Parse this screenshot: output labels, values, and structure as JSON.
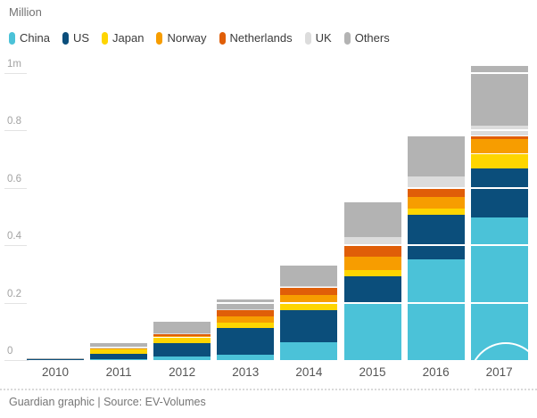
{
  "title": "Million",
  "legend": {
    "items": [
      {
        "label": "China",
        "color": "#4bc2d8"
      },
      {
        "label": "US",
        "color": "#0b4e7b"
      },
      {
        "label": "Japan",
        "color": "#fed500"
      },
      {
        "label": "Norway",
        "color": "#f79d00"
      },
      {
        "label": "Netherlands",
        "color": "#e05e08"
      },
      {
        "label": "UK",
        "color": "#dcdcdc"
      },
      {
        "label": "Others",
        "color": "#b3b3b3"
      }
    ]
  },
  "chart_data": {
    "type": "bar",
    "stacked": true,
    "title": "Million",
    "ylabel": "Million",
    "xlabel": "",
    "categories": [
      "2010",
      "2011",
      "2012",
      "2013",
      "2014",
      "2015",
      "2016",
      "2017"
    ],
    "series": [
      {
        "name": "China",
        "color": "#4bc2d8",
        "values": [
          0.0,
          0.004,
          0.013,
          0.019,
          0.063,
          0.201,
          0.352,
          0.498
        ]
      },
      {
        "name": "US",
        "color": "#0b4e7b",
        "values": [
          0.002,
          0.018,
          0.047,
          0.092,
          0.112,
          0.09,
          0.155,
          0.17
        ]
      },
      {
        "name": "Japan",
        "color": "#fed500",
        "values": [
          0.003,
          0.016,
          0.019,
          0.019,
          0.028,
          0.023,
          0.022,
          0.051
        ]
      },
      {
        "name": "Norway",
        "color": "#f79d00",
        "values": [
          0.001,
          0.005,
          0.006,
          0.022,
          0.025,
          0.046,
          0.04,
          0.052
        ]
      },
      {
        "name": "Netherlands",
        "color": "#e05e08",
        "values": [
          0.0,
          0.001,
          0.006,
          0.022,
          0.025,
          0.04,
          0.031,
          0.01
        ]
      },
      {
        "name": "UK",
        "color": "#dcdcdc",
        "values": [
          0.0,
          0.001,
          0.002,
          0.002,
          0.006,
          0.028,
          0.04,
          0.037
        ]
      },
      {
        "name": "Others",
        "color": "#b3b3b3",
        "values": [
          0.001,
          0.013,
          0.041,
          0.035,
          0.071,
          0.121,
          0.14,
          0.208
        ]
      }
    ],
    "y_ticks": [
      {
        "value": 0.0,
        "label": "0"
      },
      {
        "value": 0.2,
        "label": "0.2"
      },
      {
        "value": 0.4,
        "label": "0.4"
      },
      {
        "value": 0.6,
        "label": "0.6"
      },
      {
        "value": 0.8,
        "label": "0.8"
      },
      {
        "value": 1.0,
        "label": "1m"
      }
    ],
    "ylim": [
      0,
      1.05
    ],
    "legend_position": "top",
    "grid": "white-overlay-on-bars"
  },
  "footer": {
    "text": "Guardian graphic | Source: EV-Volumes"
  }
}
